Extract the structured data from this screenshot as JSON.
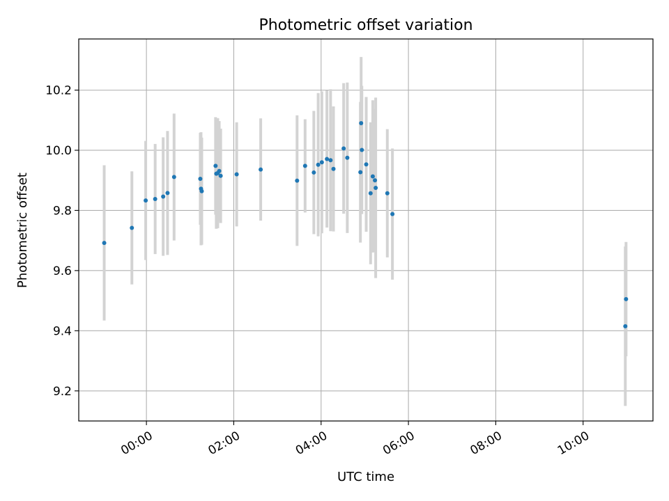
{
  "chart_data": {
    "type": "scatter",
    "title": "Photometric offset variation",
    "xlabel": "UTC time",
    "ylabel": "Photometric offset",
    "x_unit": "time of day (UTC)",
    "xlim": [
      "-01:33",
      "11:36"
    ],
    "ylim": [
      9.1,
      10.37
    ],
    "x_ticks": [
      "00:00",
      "02:00",
      "04:00",
      "06:00",
      "08:00",
      "10:00"
    ],
    "y_ticks": [
      "9.2",
      "9.4",
      "9.6",
      "9.8",
      "10.0",
      "10.2"
    ],
    "grid": true,
    "legend": "none",
    "colors": {
      "marker": "#1f77b4",
      "errorbar": "#d3d3d3",
      "grid": "#b0b0b0"
    },
    "points": [
      {
        "x": "-00:58",
        "y": 9.692,
        "err": 0.258
      },
      {
        "x": "-00:20",
        "y": 9.742,
        "err": 0.188
      },
      {
        "x": "-00:01",
        "y": 9.833,
        "err": 0.198
      },
      {
        "x": "00:12",
        "y": 9.838,
        "err": 0.183
      },
      {
        "x": "00:23",
        "y": 9.846,
        "err": 0.197
      },
      {
        "x": "00:29",
        "y": 9.858,
        "err": 0.206
      },
      {
        "x": "00:38",
        "y": 9.911,
        "err": 0.211
      },
      {
        "x": "01:14",
        "y": 9.905,
        "err": 0.153
      },
      {
        "x": "01:15",
        "y": 9.872,
        "err": 0.188
      },
      {
        "x": "01:16",
        "y": 9.864,
        "err": 0.178
      },
      {
        "x": "01:35",
        "y": 9.948,
        "err": 0.162
      },
      {
        "x": "01:36",
        "y": 9.922,
        "err": 0.183
      },
      {
        "x": "01:38",
        "y": 9.924,
        "err": 0.183
      },
      {
        "x": "01:40",
        "y": 9.931,
        "err": 0.166
      },
      {
        "x": "01:42",
        "y": 9.915,
        "err": 0.157
      },
      {
        "x": "02:04",
        "y": 9.92,
        "err": 0.173
      },
      {
        "x": "02:37",
        "y": 9.936,
        "err": 0.17
      },
      {
        "x": "03:27",
        "y": 9.899,
        "err": 0.217
      },
      {
        "x": "03:38",
        "y": 9.948,
        "err": 0.155
      },
      {
        "x": "03:50",
        "y": 9.926,
        "err": 0.205
      },
      {
        "x": "03:56",
        "y": 9.952,
        "err": 0.238
      },
      {
        "x": "04:01",
        "y": 9.96,
        "err": 0.236
      },
      {
        "x": "04:08",
        "y": 9.971,
        "err": 0.228
      },
      {
        "x": "04:13",
        "y": 9.967,
        "err": 0.236
      },
      {
        "x": "04:17",
        "y": 9.938,
        "err": 0.208
      },
      {
        "x": "04:31",
        "y": 10.006,
        "err": 0.217
      },
      {
        "x": "04:36",
        "y": 9.975,
        "err": 0.25
      },
      {
        "x": "04:54",
        "y": 9.927,
        "err": 0.234
      },
      {
        "x": "04:55",
        "y": 10.09,
        "err": 0.22
      },
      {
        "x": "04:56",
        "y": 10.001,
        "err": 0.213
      },
      {
        "x": "05:02",
        "y": 9.953,
        "err": 0.224
      },
      {
        "x": "05:08",
        "y": 9.857,
        "err": 0.236
      },
      {
        "x": "05:11",
        "y": 9.913,
        "err": 0.253
      },
      {
        "x": "05:14",
        "y": 9.9,
        "err": 0.238
      },
      {
        "x": "05:15",
        "y": 9.875,
        "err": 0.3
      },
      {
        "x": "05:31",
        "y": 9.857,
        "err": 0.213
      },
      {
        "x": "05:38",
        "y": 9.788,
        "err": 0.218
      },
      {
        "x": "10:58",
        "y": 9.415,
        "err": 0.265
      },
      {
        "x": "10:59",
        "y": 9.505,
        "err": 0.19
      }
    ]
  }
}
